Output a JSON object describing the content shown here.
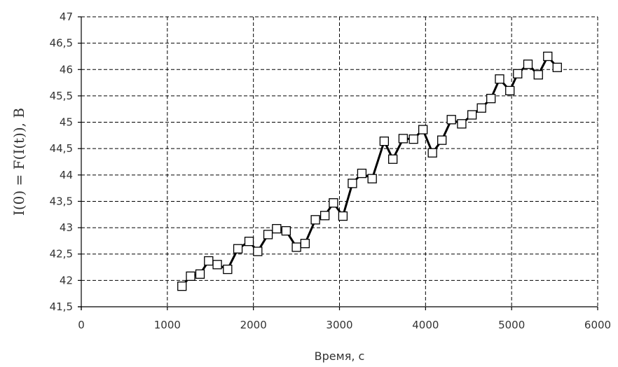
{
  "chart_data": {
    "type": "line",
    "xlabel": "Время, с",
    "ylabel": "I(0) = F(I(t)),  В",
    "xlim": [
      0,
      6000
    ],
    "ylim": [
      41.5,
      47
    ],
    "x_ticks": [
      0,
      1000,
      2000,
      3000,
      4000,
      5000,
      6000
    ],
    "y_ticks": [
      41.5,
      42,
      42.5,
      43,
      43.5,
      44,
      44.5,
      45,
      45.5,
      46,
      46.5,
      47
    ],
    "x_tick_labels": [
      "0",
      "1000",
      "2000",
      "3000",
      "4000",
      "5000",
      "6000"
    ],
    "y_tick_labels": [
      "41,5",
      "42",
      "42,5",
      "43",
      "43,5",
      "44",
      "44,5",
      "45",
      "45,5",
      "46",
      "46,5",
      "47"
    ],
    "grid": true,
    "marker": "open-square",
    "series": [
      {
        "x": [
          1170,
          1270,
          1380,
          1480,
          1580,
          1700,
          1820,
          1950,
          2050,
          2170,
          2270,
          2380,
          2500,
          2600,
          2720,
          2830,
          2930,
          3040,
          3150,
          3260,
          3380,
          3520,
          3620,
          3740,
          3860,
          3970,
          4080,
          4190,
          4300,
          4420,
          4540,
          4650,
          4760,
          4860,
          4980,
          5070,
          5190,
          5310,
          5420,
          5530
        ],
        "y": [
          41.89,
          42.08,
          42.12,
          42.37,
          42.3,
          42.21,
          42.6,
          42.74,
          42.55,
          42.87,
          42.98,
          42.94,
          42.63,
          42.7,
          43.15,
          43.23,
          43.47,
          43.22,
          43.84,
          44.03,
          43.93,
          44.64,
          44.3,
          44.69,
          44.68,
          44.86,
          44.42,
          44.66,
          45.05,
          44.97,
          45.14,
          45.27,
          45.45,
          45.82,
          45.6,
          45.92,
          46.1,
          45.9,
          46.25,
          46.04
        ]
      }
    ]
  }
}
